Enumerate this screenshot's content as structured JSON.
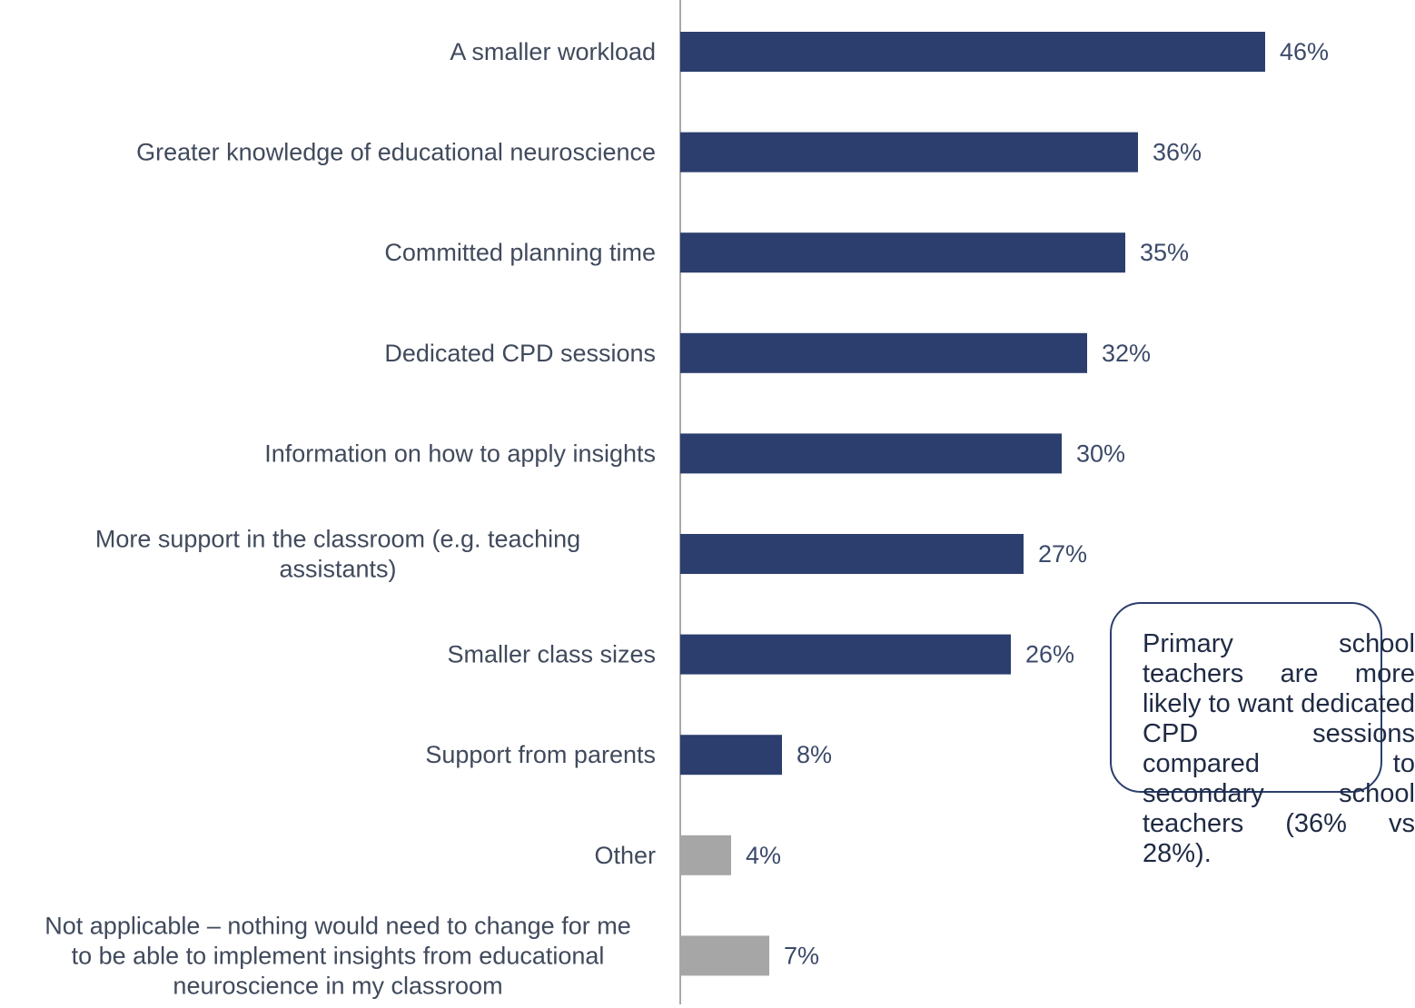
{
  "chart_data": {
    "type": "bar",
    "orientation": "horizontal",
    "categories": [
      [
        "A smaller workload"
      ],
      [
        "Greater knowledge of educational neuroscience"
      ],
      [
        "Committed planning time"
      ],
      [
        "Dedicated CPD sessions"
      ],
      [
        "Information on how to apply insights"
      ],
      [
        "More support in the classroom (e.g. teaching",
        "assistants)"
      ],
      [
        "Smaller class sizes"
      ],
      [
        "Support from parents"
      ],
      [
        "Other"
      ],
      [
        "Not applicable – nothing would need to change for me",
        "to be able to implement insights from educational",
        "neuroscience in my classroom"
      ]
    ],
    "values": [
      46,
      36,
      35,
      32,
      30,
      27,
      26,
      8,
      4,
      7
    ],
    "value_labels": [
      "46%",
      "36%",
      "35%",
      "32%",
      "30%",
      "27%",
      "26%",
      "8%",
      "4%",
      "7%"
    ],
    "bar_colors": [
      "#2c3e6e",
      "#2c3e6e",
      "#2c3e6e",
      "#2c3e6e",
      "#2c3e6e",
      "#2c3e6e",
      "#2c3e6e",
      "#2c3e6e",
      "#a6a6a6",
      "#a6a6a6"
    ],
    "xlim": [
      0,
      46
    ],
    "grid": false,
    "title": "",
    "xlabel": "",
    "ylabel": ""
  },
  "callout": {
    "text": "Primary school teachers are more likely to want dedicated CPD sessions compared to secondary school teachers (36% vs 28%)."
  },
  "colors": {
    "primary_bar": "#2c3e6e",
    "other_bar": "#a6a6a6",
    "axis": "#8c8c8c"
  }
}
